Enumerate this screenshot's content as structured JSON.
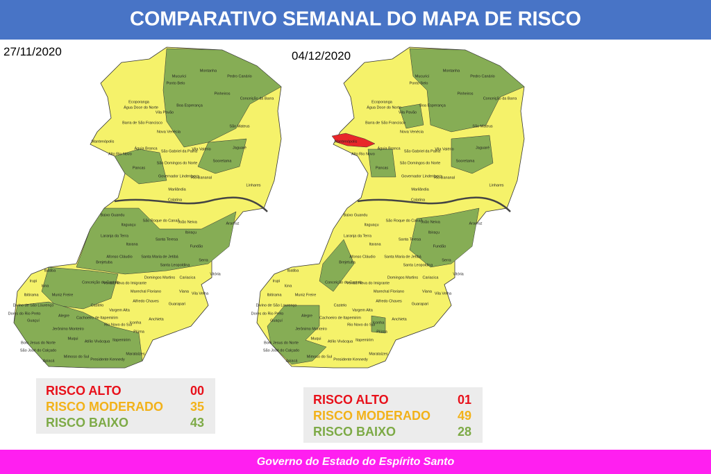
{
  "header": {
    "title": "COMPARATIVO SEMANAL DO MAPA DE RISCO"
  },
  "maps": [
    {
      "date": "27/11/2020",
      "legend": [
        {
          "label": "RISCO ALTO",
          "count": "00",
          "color": "#e8101a"
        },
        {
          "label": "RISCO MODERADO",
          "count": "35",
          "color": "#f2b21a"
        },
        {
          "label": "RISCO BAIXO",
          "count": "43",
          "color": "#7daa46"
        }
      ]
    },
    {
      "date": "04/12/2020",
      "legend": [
        {
          "label": "RISCO ALTO",
          "count": "01",
          "color": "#e8101a"
        },
        {
          "label": "RISCO MODERADO",
          "count": "49",
          "color": "#f2b21a"
        },
        {
          "label": "RISCO BAIXO",
          "count": "28",
          "color": "#7daa46"
        }
      ]
    }
  ],
  "municipality_labels": [
    "Mucurici",
    "Montanha",
    "Pedro Canário",
    "Ecoporanga",
    "Ponto Belo",
    "Pinheiros",
    "Conceição da Barra",
    "Água Doce do Norte",
    "Boa Esperança",
    "Barra de São Francisco",
    "Vila Pavão",
    "Nova Venécia",
    "São Mateus",
    "Mantenópolis",
    "Águia Branca",
    "São Gabriel da Palha",
    "Vila Valério",
    "Jaguaré",
    "Alto Rio Novo",
    "Pancas",
    "São Domingos do Norte",
    "Sooretama",
    "Governador Lindenberg",
    "Rio Bananal",
    "Linhares",
    "Marilândia",
    "Colatina",
    "Baixo Guandu",
    "São Roque do Canaã",
    "Itaguaçu",
    "João Neiva",
    "Aracruz",
    "Ibiraçu",
    "Laranja da Terra",
    "Santa Teresa",
    "Itarana",
    "Fundão",
    "Afonso Cláudio",
    "Santa Maria de Jetibá",
    "Santa Leopoldina",
    "Serra",
    "Brejetuba",
    "Ibatiba",
    "Domingos Martins",
    "Conceição do Castelo",
    "Venda Nova do Imigrante",
    "Vitória",
    "Cariacica",
    "Marechal Floriano",
    "Viana",
    "Vila Velha",
    "Alfredo Chaves",
    "Guarapari",
    "Muniz Freire",
    "Iúna",
    "Irupi",
    "Ibitirama",
    "Divino de São Lourenço",
    "Dores do Rio Preto",
    "Guaçuí",
    "Castelo",
    "Alegre",
    "Vargem Alta",
    "Cachoeiro de Itapemirim",
    "Anchieta",
    "Iconha",
    "Piúma",
    "Jerônimo Monteiro",
    "Rio Novo do Sul",
    "Muqui",
    "Atílio Vivácqua",
    "Itapemirim",
    "Marataízes",
    "Mimoso do Sul",
    "Presidente Kennedy",
    "Apiacá",
    "Bom Jesus do Norte",
    "São José do Calçado"
  ],
  "footer": {
    "text": "Governo do Estado do Espírito Santo"
  }
}
